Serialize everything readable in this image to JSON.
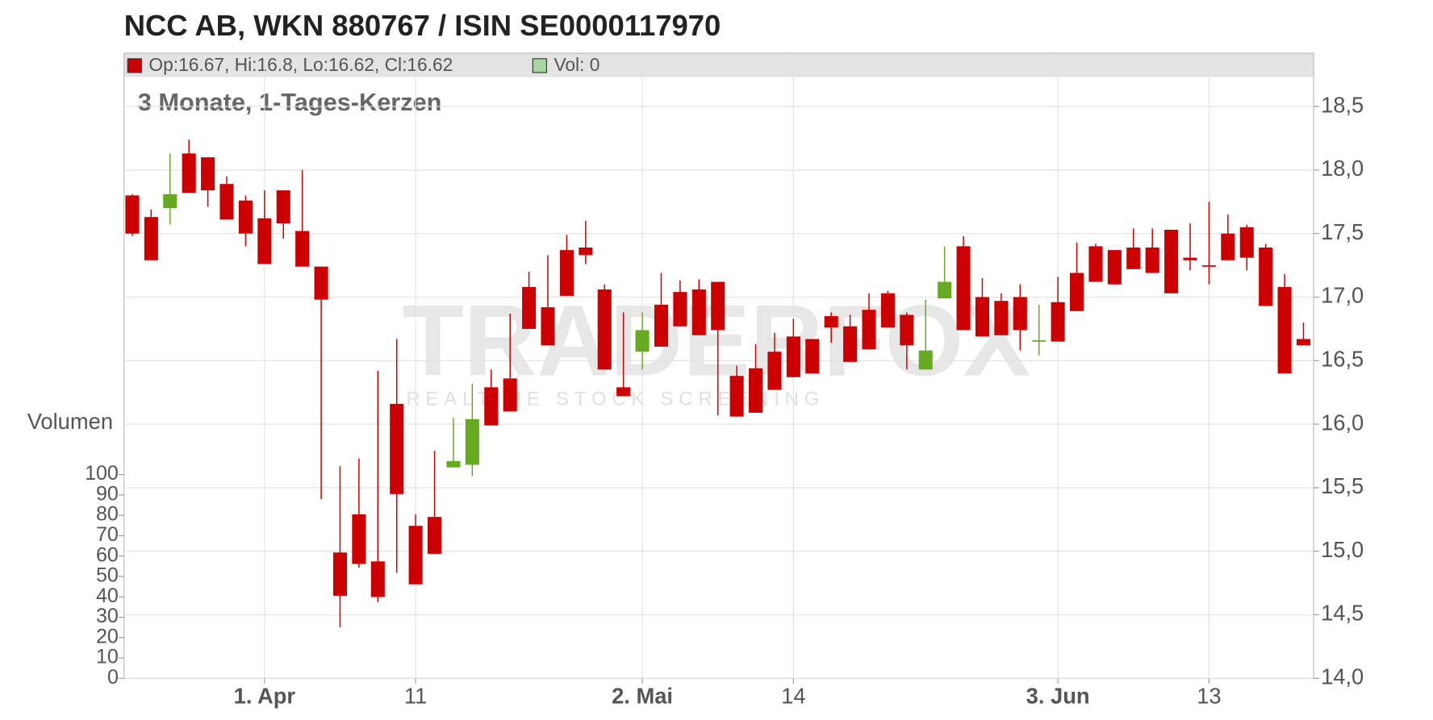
{
  "chart_data": {
    "type": "candlestick",
    "title": "NCC AB, WKN 880767 / ISIN SE0000117970",
    "subtitle": "3 Monate, 1-Tages-Kerzen",
    "legend_price": "Op:16.67, Hi:16.8, Lo:16.62, Cl:16.62",
    "legend_volume": "Vol: 0",
    "watermark": "TRADERFOX",
    "watermark_subtitle": "REALTIME STOCK SCREENING",
    "up_color": "#66aa22",
    "down_color": "#cc0000",
    "grid": true,
    "categories": [
      null,
      null,
      null,
      null,
      null,
      null,
      null,
      "1. Apr",
      null,
      null,
      null,
      null,
      null,
      null,
      null,
      "11",
      null,
      null,
      null,
      null,
      null,
      null,
      null,
      null,
      null,
      null,
      null,
      "2. Mai",
      null,
      null,
      null,
      null,
      null,
      null,
      null,
      "14",
      null,
      null,
      null,
      null,
      null,
      null,
      null,
      null,
      null,
      null,
      null,
      null,
      null,
      "3. Jun",
      null,
      null,
      null,
      null,
      null,
      null,
      null,
      "13",
      null,
      null,
      null,
      null,
      null
    ],
    "open": [
      17.8,
      17.63,
      17.7,
      18.13,
      18.1,
      17.89,
      17.76,
      17.62,
      17.84,
      17.52,
      17.24,
      14.99,
      15.29,
      14.92,
      16.16,
      15.2,
      15.27,
      15.66,
      15.68,
      16.29,
      16.36,
      17.08,
      16.92,
      17.37,
      17.39,
      17.06,
      16.29,
      16.57,
      16.94,
      17.04,
      17.06,
      17.12,
      16.38,
      16.44,
      16.57,
      16.69,
      16.67,
      16.85,
      16.77,
      16.9,
      17.03,
      16.86,
      16.43,
      16.99,
      17.4,
      17.0,
      16.97,
      17.0,
      16.65,
      16.96,
      17.19,
      17.4,
      17.37,
      17.39,
      17.39,
      17.53,
      17.31,
      17.25,
      17.5,
      17.55,
      17.39,
      17.08,
      16.67
    ],
    "high": [
      17.81,
      17.69,
      18.13,
      18.24,
      18.1,
      17.95,
      17.8,
      17.84,
      17.84,
      18.0,
      17.24,
      15.67,
      15.73,
      16.42,
      16.67,
      15.29,
      15.79,
      16.05,
      16.32,
      16.43,
      16.87,
      17.2,
      17.33,
      17.49,
      17.6,
      17.1,
      16.88,
      16.88,
      17.19,
      17.13,
      17.14,
      17.12,
      16.46,
      16.63,
      16.72,
      16.83,
      16.67,
      16.88,
      16.86,
      17.03,
      17.05,
      16.88,
      16.98,
      17.4,
      17.48,
      17.15,
      17.03,
      17.1,
      16.94,
      17.16,
      17.43,
      17.42,
      17.37,
      17.54,
      17.54,
      17.53,
      17.58,
      17.75,
      17.65,
      17.57,
      17.42,
      17.18,
      16.8
    ],
    "low": [
      17.48,
      17.29,
      17.57,
      17.82,
      17.71,
      17.61,
      17.4,
      17.26,
      17.46,
      17.24,
      15.41,
      14.4,
      14.87,
      14.6,
      14.83,
      14.74,
      14.98,
      15.66,
      15.59,
      15.99,
      16.1,
      16.75,
      16.62,
      17.01,
      17.26,
      16.43,
      16.22,
      16.43,
      16.61,
      16.77,
      16.7,
      16.07,
      16.06,
      16.09,
      16.27,
      16.37,
      16.4,
      16.64,
      16.49,
      16.59,
      16.76,
      16.43,
      16.43,
      16.99,
      16.74,
      16.69,
      16.7,
      16.58,
      16.54,
      16.65,
      16.89,
      17.12,
      17.1,
      17.22,
      17.19,
      17.03,
      17.21,
      17.1,
      17.29,
      17.21,
      16.93,
      16.4,
      16.62
    ],
    "close": [
      17.5,
      17.29,
      17.81,
      17.82,
      17.84,
      17.61,
      17.5,
      17.26,
      17.58,
      17.24,
      16.98,
      14.65,
      14.9,
      14.64,
      15.45,
      14.74,
      14.98,
      15.71,
      16.04,
      15.99,
      16.1,
      16.75,
      16.62,
      17.01,
      17.33,
      16.43,
      16.22,
      16.74,
      16.61,
      16.77,
      16.7,
      16.74,
      16.06,
      16.09,
      16.27,
      16.37,
      16.4,
      16.76,
      16.49,
      16.59,
      16.76,
      16.62,
      16.58,
      17.12,
      16.74,
      16.69,
      16.7,
      16.74,
      16.66,
      16.65,
      16.89,
      17.12,
      17.1,
      17.22,
      17.19,
      17.03,
      17.29,
      17.24,
      17.29,
      17.31,
      16.93,
      16.4,
      16.62
    ],
    "ylim": [
      14.0,
      18.5
    ],
    "yticks": [
      {
        "value": 14.0,
        "label": "14,0"
      },
      {
        "value": 14.5,
        "label": "14,5"
      },
      {
        "value": 15.0,
        "label": "15,0"
      },
      {
        "value": 15.5,
        "label": "15,5"
      },
      {
        "value": 16.0,
        "label": "16,0"
      },
      {
        "value": 16.5,
        "label": "16,5"
      },
      {
        "value": 17.0,
        "label": "17,0"
      },
      {
        "value": 17.5,
        "label": "17,5"
      },
      {
        "value": 18.0,
        "label": "18,0"
      },
      {
        "value": 18.5,
        "label": "18,5"
      }
    ],
    "y2label": "Volumen",
    "y2lim": [
      0,
      100
    ],
    "y2ticks": [
      0,
      10,
      20,
      30,
      40,
      50,
      60,
      70,
      80,
      90,
      100
    ]
  }
}
